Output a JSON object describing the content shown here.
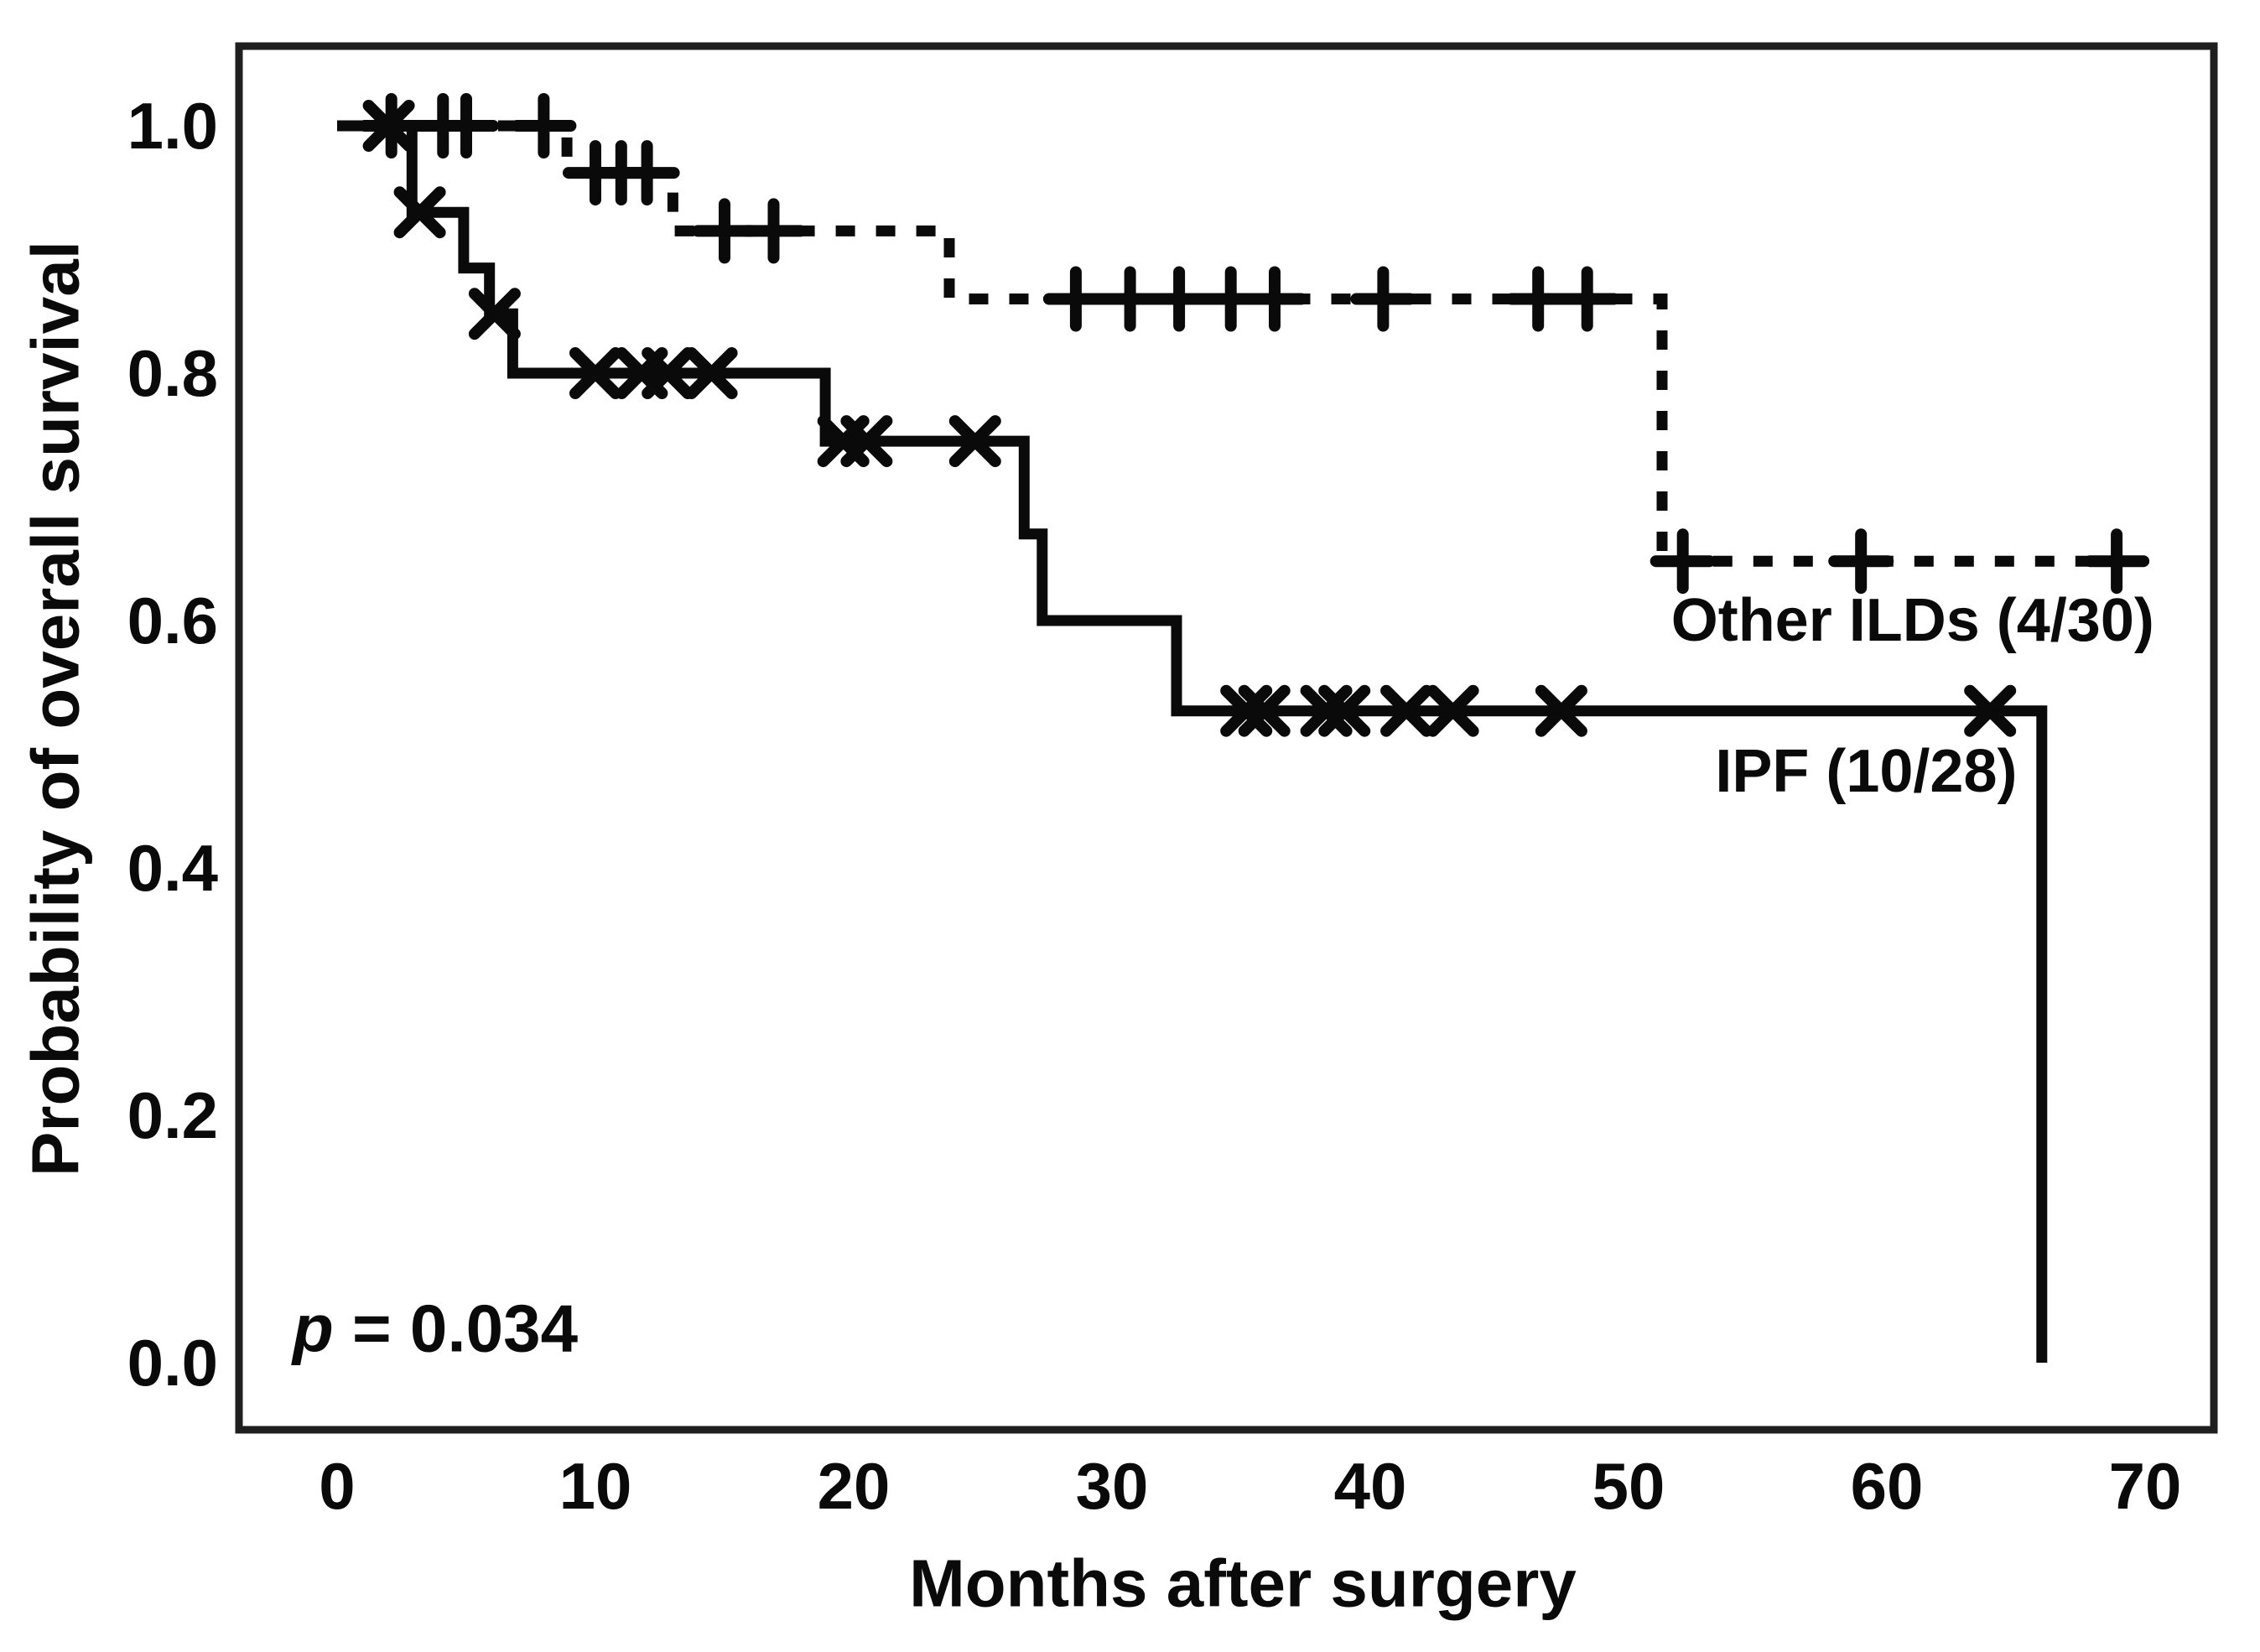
{
  "figure": {
    "background": "#ffffff",
    "ink": "#0a0a0a",
    "border_color": "#1f1f1f"
  },
  "chart_data": {
    "type": "line",
    "subtype": "kaplan-meier-step",
    "title": "",
    "xlabel": "Months after surgery",
    "ylabel": "Probability of overall survival",
    "xlim": [
      0,
      70
    ],
    "ylim": [
      0.0,
      1.0
    ],
    "grid": false,
    "legend_position": "inline-right",
    "x_ticks": [
      0,
      10,
      20,
      30,
      40,
      50,
      60,
      70
    ],
    "y_ticks": [
      {
        "label": "1.0",
        "value": 1.0
      },
      {
        "label": "0.8",
        "value": 0.8
      },
      {
        "label": "0.6",
        "value": 0.6
      },
      {
        "label": "0.4",
        "value": 0.4
      },
      {
        "label": "0.2",
        "value": 0.2
      },
      {
        "label": "0.0",
        "value": 0.0
      }
    ],
    "annotation": {
      "italic": "p",
      "rest": " = 0.034",
      "x": 3.8,
      "y": 0.028
    },
    "series": [
      {
        "id": "ipf",
        "name": "IPF (10/28)",
        "line_style": "solid",
        "marker": "x",
        "label_x": 59.2,
        "label_y": 0.478,
        "steps": [
          [
            0,
            1.0
          ],
          [
            2.9,
            1.0
          ],
          [
            2.9,
            0.93
          ],
          [
            4.9,
            0.93
          ],
          [
            4.9,
            0.885
          ],
          [
            5.9,
            0.885
          ],
          [
            5.9,
            0.848
          ],
          [
            6.8,
            0.848
          ],
          [
            6.8,
            0.8
          ],
          [
            18.9,
            0.8
          ],
          [
            18.9,
            0.745
          ],
          [
            26.6,
            0.745
          ],
          [
            26.6,
            0.67
          ],
          [
            27.3,
            0.67
          ],
          [
            27.3,
            0.6
          ],
          [
            32.5,
            0.6
          ],
          [
            32.5,
            0.527
          ],
          [
            66,
            0.527
          ],
          [
            66,
            0.0
          ]
        ],
        "censors": [
          [
            2.0,
            1.0
          ],
          [
            3.2,
            0.93
          ],
          [
            6.1,
            0.848
          ],
          [
            10.0,
            0.8
          ],
          [
            11.8,
            0.8
          ],
          [
            12.8,
            0.8
          ],
          [
            14.5,
            0.8
          ],
          [
            19.6,
            0.745
          ],
          [
            20.5,
            0.745
          ],
          [
            24.7,
            0.745
          ],
          [
            35.2,
            0.527
          ],
          [
            35.9,
            0.527
          ],
          [
            38.3,
            0.527
          ],
          [
            39.0,
            0.527
          ],
          [
            41.4,
            0.527
          ],
          [
            43.2,
            0.527
          ],
          [
            47.4,
            0.527
          ],
          [
            64.0,
            0.527
          ]
        ]
      },
      {
        "id": "other-ilds",
        "name": "Other ILDs (4/30)",
        "line_style": "dashed",
        "marker": "plus",
        "label_x": 61.0,
        "label_y": 0.6,
        "steps": [
          [
            0,
            1.0
          ],
          [
            8.9,
            1.0
          ],
          [
            8.9,
            0.962
          ],
          [
            13.0,
            0.962
          ],
          [
            13.0,
            0.915
          ],
          [
            23.7,
            0.915
          ],
          [
            23.7,
            0.86
          ],
          [
            51.3,
            0.86
          ],
          [
            51.3,
            0.648
          ],
          [
            69.5,
            0.648
          ]
        ],
        "censors": [
          [
            2.1,
            1.0
          ],
          [
            4.1,
            1.0
          ],
          [
            5.0,
            1.0
          ],
          [
            8.0,
            1.0
          ],
          [
            10.0,
            0.962
          ],
          [
            11.0,
            0.962
          ],
          [
            12.0,
            0.962
          ],
          [
            15.0,
            0.915
          ],
          [
            16.9,
            0.915
          ],
          [
            28.6,
            0.86
          ],
          [
            30.7,
            0.86
          ],
          [
            32.6,
            0.86
          ],
          [
            34.6,
            0.86
          ],
          [
            36.3,
            0.86
          ],
          [
            40.5,
            0.86
          ],
          [
            46.5,
            0.86
          ],
          [
            48.4,
            0.86
          ],
          [
            52.1,
            0.648
          ],
          [
            59.0,
            0.648
          ],
          [
            68.9,
            0.648
          ]
        ]
      }
    ]
  }
}
